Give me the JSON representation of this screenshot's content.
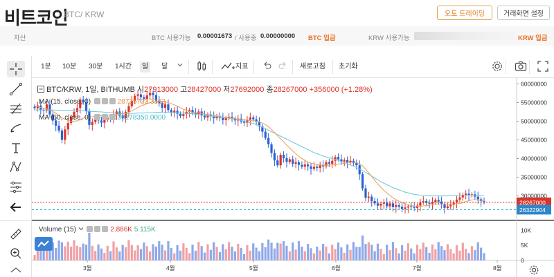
{
  "header": {
    "title": "비트코인",
    "pair": "BTC/ KRW",
    "auto_trade_label": "오토 트레이딩",
    "settings_label": "거래화면 설정"
  },
  "asset_bar": {
    "label": "자산",
    "btc_available_label": "BTC 사용가능",
    "btc_available_value": "0.00001673",
    "btc_in_use_label": "/ 사용중",
    "btc_in_use_value": "0.00000000",
    "btc_deposit_label": "BTC 입금",
    "krw_available_label": "KRW 사용가능",
    "krw_deposit_label": "KRW 입금"
  },
  "toolbar": {
    "intervals": [
      "1분",
      "10분",
      "30분",
      "1시간",
      "일",
      "달"
    ],
    "active_interval": "일",
    "indicator_label": "지표",
    "refresh_label": "새로고침",
    "reset_label": "초기화"
  },
  "chart": {
    "symbol_line": "BTC/KRW, 1일, BITHUMB",
    "open_label": "시",
    "open_value": "27913000",
    "high_label": "고",
    "high_value": "28427000",
    "low_label": "저",
    "low_value": "27692000",
    "close_label": "종",
    "close_value": "28267000",
    "change_text": "+356000 (+1.28%)",
    "ma15_label": "MA (15, close, 0)",
    "ma15_value": "28735733.3333",
    "ma60_label": "MA (60, close, 0)",
    "ma60_value": "30178350.0000",
    "volume_label": "Volume (15)",
    "volume_value_1": "2.886K",
    "volume_value_2": "5.115K",
    "last_price_tag": "28267000",
    "ma_price_tag": "26322904"
  },
  "chart_data": {
    "type": "candlestick",
    "y_ticks": [
      "60000000",
      "55000000",
      "50000000",
      "45000000",
      "40000000",
      "35000000",
      "30000000"
    ],
    "ylim": [
      24000000,
      61000000
    ],
    "x_ticks": [
      "3월",
      "4월",
      "5월",
      "6월",
      "7월",
      "8월"
    ],
    "close_series": [
      53.5,
      54.2,
      53.0,
      52.8,
      54.5,
      51.8,
      50.2,
      48.8,
      47.5,
      45.0,
      47.8,
      49.5,
      51.2,
      52.5,
      53.5,
      55.8,
      55.0,
      52.8,
      49.0,
      49.8,
      50.5,
      50.2,
      49.6,
      50.4,
      51.0,
      50.6,
      51.8,
      52.6,
      51.5,
      50.8,
      52.5,
      54.0,
      55.5,
      56.8,
      57.2,
      56.4,
      56.0,
      56.9,
      57.6,
      57.0,
      55.5,
      54.8,
      53.6,
      54.5,
      53.0,
      52.2,
      52.8,
      52.0,
      51.4,
      51.9,
      52.5,
      53.0,
      52.2,
      51.8,
      52.6,
      51.5,
      51.0,
      51.8,
      51.3,
      50.8,
      51.4,
      50.9,
      50.3,
      50.8,
      51.2,
      50.7,
      50.2,
      50.7,
      49.9,
      49.6,
      50.4,
      51.0,
      50.5,
      49.8,
      48.6,
      47.2,
      45.5,
      43.8,
      41.5,
      39.5,
      38.2,
      41.0,
      40.1,
      39.1,
      39.8,
      38.6,
      39.0,
      38.3,
      37.8,
      38.4,
      37.9,
      37.2,
      37.8,
      37.5,
      38.2,
      37.9,
      39.0,
      38.6,
      39.4,
      40.4,
      39.8,
      39.2,
      39.6,
      38.9,
      39.4,
      38.8,
      38.2,
      35.8,
      32.0,
      29.5,
      29.8,
      28.6,
      28.0,
      27.4,
      27.9,
      28.2,
      27.2,
      28.0,
      27.0,
      27.5,
      27.1,
      26.5,
      26.9,
      27.2,
      27.0,
      26.8,
      27.4,
      28.2,
      28.6,
      28.1,
      27.9,
      28.4,
      28.9,
      28.5,
      27.8,
      26.8,
      27.2,
      27.6,
      28.2,
      29.0,
      29.6,
      30.3,
      30.6,
      30.1,
      30.4,
      29.8,
      29.1,
      28.6,
      28.3
    ],
    "ma15_series": [
      54.0,
      53.9,
      53.7,
      53.5,
      53.3,
      53.0,
      52.6,
      52.1,
      51.5,
      50.9,
      50.5,
      50.2,
      50.0,
      50.0,
      50.1,
      50.4,
      50.8,
      51.1,
      51.2,
      51.2,
      51.3,
      51.4,
      51.5,
      51.5,
      51.6,
      51.6,
      51.7,
      51.8,
      51.9,
      52.0,
      52.1,
      52.4,
      52.8,
      53.2,
      53.7,
      54.1,
      54.4,
      54.7,
      55.0,
      55.2,
      55.3,
      55.3,
      55.3,
      55.2,
      55.0,
      54.7,
      54.4,
      54.0,
      53.6,
      53.2,
      52.9,
      52.6,
      52.4,
      52.3,
      52.2,
      52.1,
      51.9,
      51.8,
      51.7,
      51.5,
      51.4,
      51.3,
      51.1,
      51.0,
      50.9,
      50.8,
      50.7,
      50.6,
      50.5,
      50.4,
      50.3,
      50.2,
      50.1,
      50.0,
      49.8,
      49.5,
      49.1,
      48.5,
      47.8,
      47.0,
      46.1,
      45.3,
      44.5,
      43.6,
      42.8,
      42.0,
      41.3,
      40.6,
      40.0,
      39.5,
      39.1,
      38.8,
      38.6,
      38.4,
      38.3,
      38.2,
      38.2,
      38.2,
      38.3,
      38.4,
      38.5,
      38.6,
      38.8,
      38.9,
      39.0,
      39.0,
      38.9,
      38.6,
      38.0,
      37.2,
      36.2,
      35.2,
      34.2,
      33.2,
      32.3,
      31.5,
      30.8,
      30.1,
      29.5,
      29.0,
      28.6,
      28.2,
      27.9,
      27.6,
      27.4,
      27.3,
      27.2,
      27.2,
      27.3,
      27.4,
      27.5,
      27.6,
      27.7,
      27.8,
      27.8,
      27.8,
      27.7,
      27.7,
      27.8,
      27.9,
      28.0,
      28.2,
      28.5,
      28.7,
      28.9,
      29.0,
      28.9,
      28.8,
      28.7
    ],
    "ma60_series": [
      53.0,
      53.0,
      53.0,
      53.0,
      53.0,
      53.0,
      53.0,
      52.9,
      52.9,
      52.9,
      52.9,
      52.9,
      52.8,
      52.8,
      52.8,
      52.8,
      52.8,
      52.7,
      52.7,
      52.6,
      52.6,
      52.5,
      52.5,
      52.4,
      52.4,
      52.3,
      52.3,
      52.2,
      52.2,
      52.1,
      52.1,
      52.1,
      52.1,
      52.1,
      52.2,
      52.2,
      52.2,
      52.3,
      52.3,
      52.3,
      52.4,
      52.4,
      52.4,
      52.4,
      52.4,
      52.4,
      52.3,
      52.3,
      52.2,
      52.2,
      52.1,
      52.0,
      52.0,
      51.9,
      51.8,
      51.7,
      51.6,
      51.5,
      51.4,
      51.3,
      51.2,
      51.1,
      51.0,
      50.9,
      50.8,
      50.7,
      50.6,
      50.4,
      50.2,
      50.0,
      49.8,
      49.6,
      49.4,
      49.1,
      48.8,
      48.4,
      48.0,
      47.6,
      47.2,
      46.8,
      46.4,
      46.0,
      45.6,
      45.2,
      44.8,
      44.4,
      44.0,
      43.6,
      43.2,
      42.8,
      42.4,
      42.0,
      41.6,
      41.3,
      41.0,
      40.7,
      40.4,
      40.2,
      40.0,
      39.8,
      39.5,
      39.2,
      38.9,
      38.6,
      38.3,
      38.0,
      37.6,
      37.2,
      36.8,
      36.3,
      35.8,
      35.3,
      34.8,
      34.3,
      33.8,
      33.4,
      33.0,
      32.6,
      32.2,
      31.9,
      31.6,
      31.3,
      31.0,
      30.8,
      30.6,
      30.4,
      30.3,
      30.2,
      30.1,
      30.0,
      30.0,
      30.0,
      30.0,
      30.0,
      30.0,
      30.0,
      30.0,
      30.1,
      30.1,
      30.1,
      30.2,
      30.2,
      30.2,
      30.2,
      30.2,
      30.2,
      30.2,
      30.2,
      30.2
    ],
    "volume_ticks": [
      "10K",
      "5K",
      "0"
    ],
    "volume_ylim": [
      0,
      11000
    ],
    "colors": {
      "up": "#d9342b",
      "down": "#2962d1",
      "ma15": "#f0a060",
      "ma60": "#74c9dc",
      "vol_up": "#f0a1a6",
      "vol_down": "#8fa9e8"
    }
  }
}
